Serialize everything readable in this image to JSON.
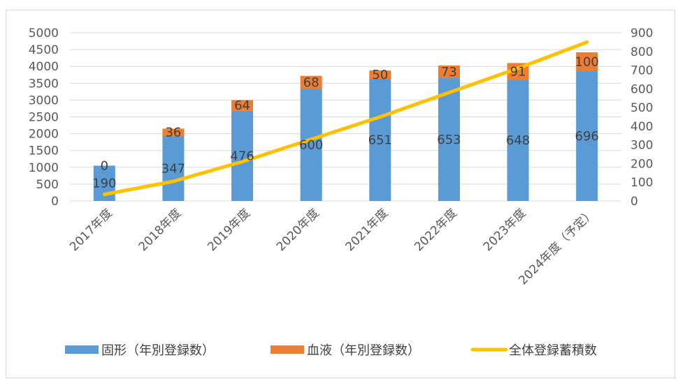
{
  "chart_data": {
    "type": "bar",
    "stacked": true,
    "categories": [
      "2017年度",
      "2018年度",
      "2019年度",
      "2020年度",
      "2021年度",
      "2022年度",
      "2023年度",
      "2024年度（予定）"
    ],
    "series": [
      {
        "name": "固形（年別登録数）",
        "kind": "bar",
        "axis": "left",
        "color": "#5b9bd5",
        "values": [
          190,
          347,
          476,
          600,
          651,
          653,
          648,
          696
        ]
      },
      {
        "name": "血液（年別登録数）",
        "kind": "bar",
        "axis": "left",
        "color": "#ed7d31",
        "values": [
          0,
          36,
          64,
          68,
          50,
          73,
          91,
          100
        ]
      },
      {
        "name": "全体登録蓄積数",
        "kind": "line",
        "axis": "right",
        "color": "#ffc000",
        "values": [
          35,
          105,
          210,
          330,
          450,
          580,
          710,
          850
        ]
      }
    ],
    "bar_display_totals": [
      1050,
      2150,
      3000,
      3720,
      3880,
      4030,
      4100,
      4420
    ],
    "solid_segment_totals": [
      1050,
      1930,
      2680,
      3330,
      3630,
      3650,
      3600,
      3860
    ],
    "left_axis": {
      "min": 0,
      "max": 5000,
      "step": 500,
      "ticks": [
        "0",
        "500",
        "1000",
        "1500",
        "2000",
        "2500",
        "3000",
        "3500",
        "4000",
        "4500",
        "5000"
      ]
    },
    "right_axis": {
      "min": 0,
      "max": 900,
      "step": 100,
      "ticks": [
        "0",
        "100",
        "200",
        "300",
        "400",
        "500",
        "600",
        "700",
        "800",
        "900"
      ]
    },
    "grid": true,
    "legend_position": "bottom"
  }
}
